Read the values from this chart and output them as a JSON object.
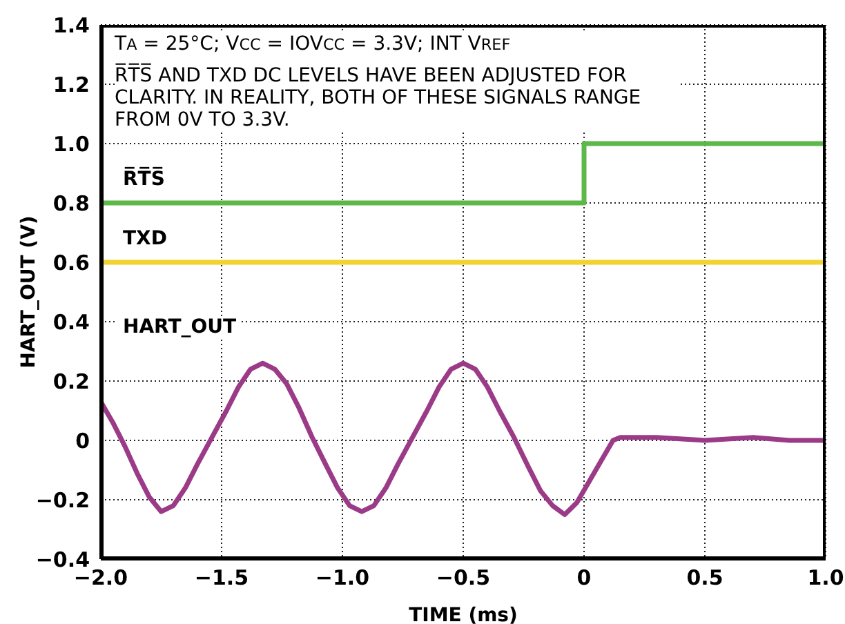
{
  "chart_data": {
    "type": "line",
    "xlabel": "TIME (ms)",
    "ylabel": "HART_OUT (V)",
    "annotations": [
      "T$_{A}$ = 25°C; V$_{CC}$ = IOV$_{CC}$ = 3.3V; INT V$_{REF}$",
      "R̅T̅S̅ AND TXD DC LEVELS HAVE BEEN ADJUSTED FOR CLARITY. IN REALITY, BOTH OF THESE SIGNALS RANGE FROM 0V TO 3.3V."
    ],
    "series": [
      {
        "name": "R̅T̅S̅",
        "type": "step",
        "color": "#5cb848",
        "x": [
          -2.0,
          0.0,
          1.0
        ],
        "values": [
          0.8,
          1.0,
          1.0
        ]
      },
      {
        "name": "TXD",
        "type": "line",
        "color": "#f2d230",
        "x": [
          -2.0,
          1.0
        ],
        "values": [
          0.6,
          0.6
        ]
      },
      {
        "name": "HART_OUT",
        "type": "line",
        "color": "#9b3b87",
        "x": [
          -2.0,
          -1.95,
          -1.9,
          -1.85,
          -1.8,
          -1.75,
          -1.7,
          -1.65,
          -1.6,
          -1.54,
          -1.48,
          -1.43,
          -1.38,
          -1.33,
          -1.28,
          -1.23,
          -1.18,
          -1.125,
          -1.07,
          -1.02,
          -0.97,
          -0.92,
          -0.87,
          -0.82,
          -0.77,
          -0.71,
          -0.65,
          -0.6,
          -0.55,
          -0.5,
          -0.45,
          -0.4,
          -0.35,
          -0.29,
          -0.23,
          -0.18,
          -0.13,
          -0.08,
          -0.03,
          0.02,
          0.07,
          0.12,
          0.15,
          0.3,
          0.5,
          0.7,
          0.85,
          1.0
        ],
        "values": [
          0.13,
          0.06,
          -0.02,
          -0.11,
          -0.19,
          -0.24,
          -0.22,
          -0.16,
          -0.08,
          0.01,
          0.1,
          0.18,
          0.24,
          0.26,
          0.24,
          0.19,
          0.11,
          0.01,
          -0.08,
          -0.16,
          -0.22,
          -0.24,
          -0.22,
          -0.16,
          -0.08,
          0.01,
          0.1,
          0.18,
          0.24,
          0.26,
          0.24,
          0.18,
          0.1,
          0.01,
          -0.09,
          -0.17,
          -0.22,
          -0.25,
          -0.21,
          -0.14,
          -0.07,
          0.0,
          0.01,
          0.01,
          0.0,
          0.01,
          0.0,
          0.0
        ]
      }
    ],
    "xlim": [
      -2.0,
      1.0
    ],
    "xticks": [
      {
        "value": -2.0,
        "label": "−2.0"
      },
      {
        "value": -1.5,
        "label": "−1.5"
      },
      {
        "value": -1.0,
        "label": "−1.0"
      },
      {
        "value": -0.5,
        "label": "−0.5"
      },
      0,
      0.5,
      {
        "value": 1.0,
        "label": "1.0"
      }
    ],
    "ylim": [
      -0.4,
      1.4
    ],
    "yticks": [
      {
        "value": -0.4,
        "label": "−0.4"
      },
      {
        "value": -0.2,
        "label": "−0.2"
      },
      0,
      0.2,
      0.4,
      0.6,
      0.8,
      {
        "value": 1.0,
        "label": "1.0"
      },
      1.2,
      1.4
    ],
    "grid": true,
    "legend": false,
    "marker": "none",
    "line_style": "solid"
  }
}
